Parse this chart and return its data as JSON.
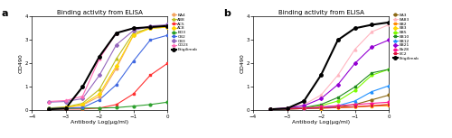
{
  "title": "Binding activity from ELISA",
  "xlabel": "Antibody Log(μg/ml)",
  "ylabel": "OD490",
  "xlim": [
    -4,
    0
  ],
  "ylim": [
    0,
    4
  ],
  "yticks": [
    0,
    1,
    2,
    3,
    4
  ],
  "xticks": [
    -4,
    -3,
    -2,
    -1,
    0
  ],
  "panel_a": {
    "label": "a",
    "series": {
      "BA4": {
        "color": "#F4A460",
        "marker": "o",
        "x": [
          -3.5,
          -3,
          -2.5,
          -2,
          -1.5,
          -1,
          -0.5,
          0
        ],
        "y": [
          0.08,
          0.12,
          0.22,
          0.6,
          1.8,
          3.2,
          3.55,
          3.6
        ]
      },
      "AB8": {
        "color": "#BCBD22",
        "marker": "^",
        "x": [
          -3.5,
          -3,
          -2.5,
          -2,
          -1.5,
          -1,
          -0.5,
          0
        ],
        "y": [
          0.1,
          0.15,
          0.3,
          0.9,
          2.2,
          3.3,
          3.5,
          3.55
        ]
      },
      "AC5": {
        "color": "#FF3030",
        "marker": "s",
        "x": [
          -3.5,
          -3,
          -2.5,
          -2,
          -1.5,
          -1,
          -0.5,
          0
        ],
        "y": [
          0.06,
          0.06,
          0.06,
          0.1,
          0.25,
          0.7,
          1.5,
          2.0
        ]
      },
      "AC8": {
        "color": "#FFD700",
        "marker": "D",
        "x": [
          -3.5,
          -3,
          -2.5,
          -2,
          -1.5,
          -1,
          -0.5,
          0
        ],
        "y": [
          0.1,
          0.12,
          0.25,
          0.7,
          1.9,
          3.2,
          3.5,
          3.55
        ]
      },
      "BD3": {
        "color": "#2CA02C",
        "marker": "o",
        "x": [
          -3.5,
          -3,
          -2.5,
          -2,
          -1.5,
          -1,
          -0.5,
          0
        ],
        "y": [
          0.08,
          0.08,
          0.1,
          0.1,
          0.12,
          0.18,
          0.25,
          0.35
        ]
      },
      "CB2": {
        "color": "#4169E1",
        "marker": "s",
        "x": [
          -3.5,
          -3,
          -2.5,
          -2,
          -1.5,
          -1,
          -0.5,
          0
        ],
        "y": [
          0.08,
          0.1,
          0.12,
          0.45,
          1.1,
          2.1,
          3.0,
          3.2
        ]
      },
      "CB3": {
        "color": "#9467BD",
        "marker": "D",
        "x": [
          -3.5,
          -3,
          -2.5,
          -2,
          -1.5,
          -1,
          -0.5,
          0
        ],
        "y": [
          0.35,
          0.38,
          0.5,
          1.5,
          2.8,
          3.4,
          3.6,
          3.65
        ]
      },
      "CD23": {
        "color": "#FF69B4",
        "marker": "^",
        "x": [
          -3.5,
          -3,
          -2.5,
          -2,
          -1.5,
          -1,
          -0.5,
          0
        ],
        "y": [
          0.38,
          0.42,
          0.6,
          2.2,
          3.3,
          3.5,
          3.55,
          3.6
        ]
      },
      "Etigilimab": {
        "color": "#000000",
        "marker": "o",
        "x": [
          -3.5,
          -3,
          -2.5,
          -2,
          -1.5,
          -1,
          -0.5,
          0
        ],
        "y": [
          0.05,
          0.08,
          1.0,
          2.3,
          3.3,
          3.5,
          3.55,
          3.6
        ],
        "lw": 1.5
      }
    },
    "legend_order": [
      "BA4",
      "AB8",
      "AC5",
      "AC8",
      "BD3",
      "CB2",
      "CB3",
      "CD23",
      "Etigilimab"
    ]
  },
  "panel_b": {
    "label": "b",
    "series": {
      "EA3": {
        "color": "#8B6914",
        "marker": "o",
        "x": [
          -3.5,
          -3,
          -2.5,
          -2,
          -1.5,
          -1,
          -0.5,
          0
        ],
        "y": [
          0.05,
          0.06,
          0.08,
          0.1,
          0.15,
          0.25,
          0.45,
          0.65
        ]
      },
      "EA83": {
        "color": "#FFB6C1",
        "marker": "^",
        "x": [
          -3.5,
          -3,
          -2.5,
          -2,
          -1.5,
          -1,
          -0.5,
          0
        ],
        "y": [
          0.06,
          0.1,
          0.25,
          0.65,
          1.5,
          2.6,
          3.35,
          3.65
        ]
      },
      "EB2": {
        "color": "#FF8C00",
        "marker": "s",
        "x": [
          -3.5,
          -3,
          -2.5,
          -2,
          -1.5,
          -1,
          -0.5,
          0
        ],
        "y": [
          0.05,
          0.06,
          0.08,
          0.1,
          0.12,
          0.15,
          0.18,
          0.2
        ]
      },
      "EB3": {
        "color": "#FFD700",
        "marker": "D",
        "x": [
          -3.5,
          -3,
          -2.5,
          -2,
          -1.5,
          -1,
          -0.5,
          0
        ],
        "y": [
          0.05,
          0.06,
          0.08,
          0.1,
          0.12,
          0.15,
          0.2,
          0.25
        ]
      },
      "EB5": {
        "color": "#7CFC00",
        "marker": "o",
        "x": [
          -3.5,
          -3,
          -2.5,
          -2,
          -1.5,
          -1,
          -0.5,
          0
        ],
        "y": [
          0.06,
          0.08,
          0.1,
          0.2,
          0.4,
          0.85,
          1.5,
          1.75
        ]
      },
      "EB10": {
        "color": "#228B22",
        "marker": "s",
        "x": [
          -3.5,
          -3,
          -2.5,
          -2,
          -1.5,
          -1,
          -0.5,
          0
        ],
        "y": [
          0.06,
          0.08,
          0.12,
          0.25,
          0.55,
          1.0,
          1.6,
          1.75
        ]
      },
      "EB12": {
        "color": "#1E90FF",
        "marker": "^",
        "x": [
          -3.5,
          -3,
          -2.5,
          -2,
          -1.5,
          -1,
          -0.5,
          0
        ],
        "y": [
          0.05,
          0.06,
          0.08,
          0.12,
          0.2,
          0.4,
          0.8,
          1.05
        ]
      },
      "EB21": {
        "color": "#9400D3",
        "marker": "D",
        "x": [
          -3.5,
          -3,
          -2.5,
          -2,
          -1.5,
          -1,
          -0.5,
          0
        ],
        "y": [
          0.06,
          0.1,
          0.2,
          0.5,
          1.1,
          2.0,
          2.7,
          3.0
        ]
      },
      "Eb28": {
        "color": "#FF1493",
        "marker": "o",
        "x": [
          -3.5,
          -3,
          -2.5,
          -2,
          -1.5,
          -1,
          -0.5,
          0
        ],
        "y": [
          0.06,
          0.08,
          0.1,
          0.15,
          0.2,
          0.25,
          0.3,
          0.35
        ]
      },
      "EC2": {
        "color": "#DC143C",
        "marker": "s",
        "x": [
          -3.5,
          -3,
          -2.5,
          -2,
          -1.5,
          -1,
          -0.5,
          0
        ],
        "y": [
          0.05,
          0.06,
          0.08,
          0.1,
          0.12,
          0.15,
          0.2,
          0.25
        ]
      },
      "Etigilimab": {
        "color": "#000000",
        "marker": "o",
        "x": [
          -3.5,
          -3,
          -2.5,
          -2,
          -1.5,
          -1,
          -0.5,
          0
        ],
        "y": [
          0.05,
          0.08,
          0.4,
          1.5,
          3.0,
          3.5,
          3.65,
          3.75
        ],
        "lw": 1.5
      }
    },
    "legend_order": [
      "EA3",
      "EA83",
      "EB2",
      "EB3",
      "EB5",
      "EB10",
      "EB12",
      "EB21",
      "Eb28",
      "EC2",
      "Etigilimab"
    ]
  },
  "figsize": [
    5.0,
    1.53
  ],
  "dpi": 100,
  "bg_color": "#ffffff",
  "title_fontsize": 5.0,
  "label_fontsize": 4.5,
  "tick_fontsize": 4.0,
  "legend_fontsize": 3.2,
  "panel_label_fontsize": 8,
  "line_width": 0.8,
  "marker_size": 2.0
}
